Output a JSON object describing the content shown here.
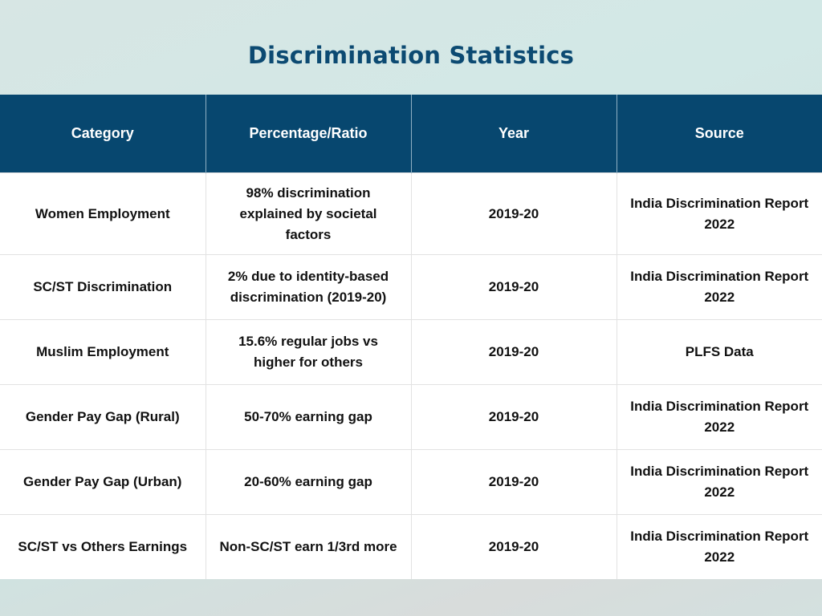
{
  "title": "Discrimination Statistics",
  "table": {
    "headers": [
      "Category",
      "Percentage/Ratio",
      "Year",
      "Source"
    ],
    "rows": [
      {
        "category": "Women Employment",
        "ratio": "98% discrimination explained by societal factors",
        "year": "2019-20",
        "source": "India Discrimination Report 2022"
      },
      {
        "category": "SC/ST Discrimination",
        "ratio": "2% due to identity-based discrimination (2019-20)",
        "year": "2019-20",
        "source": "India Discrimination Report 2022"
      },
      {
        "category": "Muslim Employment",
        "ratio": "15.6% regular jobs vs higher for others",
        "year": "2019-20",
        "source": "PLFS Data"
      },
      {
        "category": "Gender Pay Gap (Rural)",
        "ratio": "50-70% earning gap",
        "year": "2019-20",
        "source": "India Discrimination Report 2022"
      },
      {
        "category": "Gender Pay Gap (Urban)",
        "ratio": "20-60% earning gap",
        "year": "2019-20",
        "source": "India Discrimination Report 2022"
      },
      {
        "category": "SC/ST vs Others Earnings",
        "ratio": "Non-SC/ST earn 1/3rd more",
        "year": "2019-20",
        "source": "India Discrimination Report 2022"
      }
    ]
  },
  "colors": {
    "title": "#0c4a72",
    "header_bg": "#07476f",
    "header_text": "#ffffff",
    "cell_bg": "#ffffff",
    "cell_text": "#111111"
  }
}
